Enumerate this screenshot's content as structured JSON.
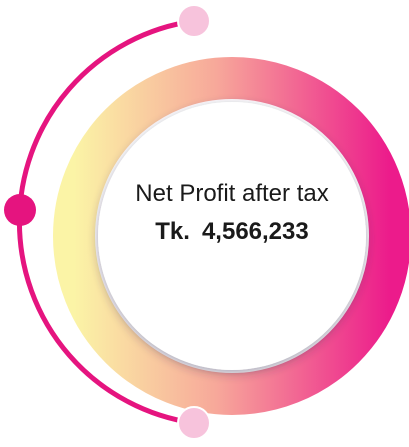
{
  "card": {
    "label": "Net Profit after tax",
    "currency": "Tk.",
    "amount": "4,566,233"
  }
}
